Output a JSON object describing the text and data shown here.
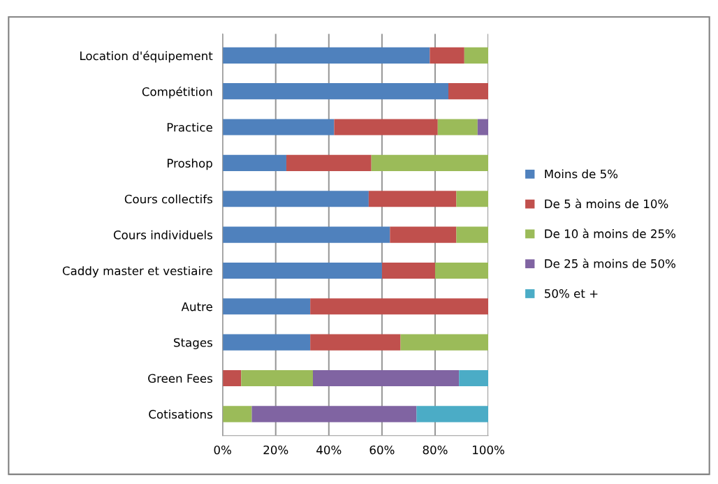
{
  "chart_data": {
    "type": "bar",
    "orientation": "horizontal",
    "stacked": true,
    "categories": [
      "Location d'équipement",
      "Compétition",
      "Practice",
      "Proshop",
      "Cours collectifs",
      "Cours individuels",
      "Caddy master et vestiaire",
      "Autre",
      "Stages",
      "Green Fees",
      "Cotisations"
    ],
    "series": [
      {
        "name": "Moins de 5%",
        "color": "#4f81bd",
        "values": [
          78,
          85,
          42,
          24,
          55,
          63,
          60,
          33,
          33,
          0,
          0
        ]
      },
      {
        "name": "De 5 à moins de 10%",
        "color": "#c0504d",
        "values": [
          13,
          15,
          39,
          32,
          33,
          25,
          20,
          67,
          34,
          7,
          0
        ]
      },
      {
        "name": "De 10 à moins de 25%",
        "color": "#9bbb59",
        "values": [
          9,
          0,
          15,
          44,
          12,
          12,
          20,
          0,
          33,
          27,
          11
        ]
      },
      {
        "name": "De 25 à moins de 50%",
        "color": "#8064a2",
        "values": [
          0,
          0,
          4,
          0,
          0,
          0,
          0,
          0,
          0,
          55,
          62
        ]
      },
      {
        "name": "50% et +",
        "color": "#4bacc6",
        "values": [
          0,
          0,
          0,
          0,
          0,
          0,
          0,
          0,
          0,
          11,
          27
        ]
      }
    ],
    "xlim": [
      0,
      100
    ],
    "xticks": [
      {
        "value": 0,
        "label": "0%"
      },
      {
        "value": 20,
        "label": "20%"
      },
      {
        "value": 40,
        "label": "40%"
      },
      {
        "value": 60,
        "label": "60%"
      },
      {
        "value": 80,
        "label": "80%"
      },
      {
        "value": 100,
        "label": "100%"
      }
    ],
    "grid": "x",
    "legend": "right"
  }
}
